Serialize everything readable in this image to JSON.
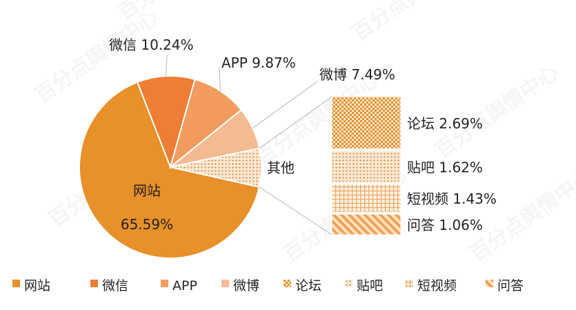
{
  "chart_data": {
    "type": "pie",
    "title": "",
    "slices": [
      {
        "name": "网站",
        "value": 65.59,
        "label": "65.59%",
        "color": "#E8902A"
      },
      {
        "name": "微信",
        "value": 10.24,
        "label": "10.24%",
        "color": "#EE7E33"
      },
      {
        "name": "APP",
        "value": 9.87,
        "label": "9.87%",
        "color": "#F19C5E"
      },
      {
        "name": "微博",
        "value": 7.49,
        "label": "7.49%",
        "color": "#F4BB92"
      },
      {
        "name": "其他",
        "value": 6.8,
        "color": "#F4BB92",
        "pattern": "dots"
      }
    ],
    "breakdown_of": "其他",
    "breakdown": [
      {
        "name": "论坛",
        "value": 2.69,
        "label": "2.69%",
        "color": "#E8902A",
        "pattern": "checker"
      },
      {
        "name": "贴吧",
        "value": 1.62,
        "label": "1.62%",
        "color": "#F0A660",
        "pattern": "dots"
      },
      {
        "name": "短视频",
        "value": 1.43,
        "label": "1.43%",
        "color": "#F0A660",
        "pattern": "grid"
      },
      {
        "name": "问答",
        "value": 1.06,
        "label": "1.06%",
        "color": "#F4A050",
        "pattern": "diagonal"
      }
    ],
    "legend": [
      {
        "name": "网站",
        "pattern": "solid",
        "color": "#E8902A"
      },
      {
        "name": "微信",
        "pattern": "solid",
        "color": "#EE7E33"
      },
      {
        "name": "APP",
        "pattern": "solid",
        "color": "#F19C5E"
      },
      {
        "name": "微博",
        "pattern": "solid",
        "color": "#F4BB92"
      },
      {
        "name": "论坛",
        "pattern": "checker",
        "color": "#E8902A"
      },
      {
        "name": "贴吧",
        "pattern": "dots",
        "color": "#F0A660"
      },
      {
        "name": "短视频",
        "pattern": "grid",
        "color": "#F0A660"
      },
      {
        "name": "问答",
        "pattern": "diagonal",
        "color": "#F4A050"
      }
    ],
    "legend_position": "bottom"
  },
  "watermark": {
    "text": "百分点舆情中心"
  }
}
